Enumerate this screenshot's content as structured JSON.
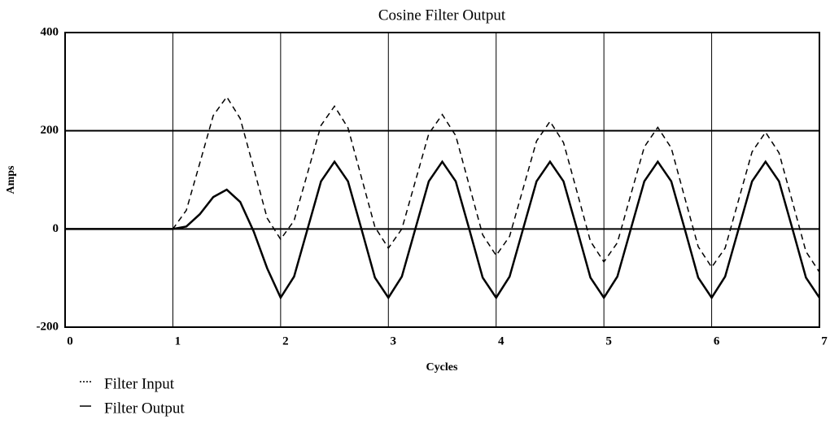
{
  "chart_data": {
    "type": "line",
    "title": "Cosine Filter Output",
    "xlabel": "Cycles",
    "ylabel": "Amps",
    "x": [
      0,
      0.125,
      0.25,
      0.375,
      0.5,
      0.625,
      0.75,
      0.875,
      1,
      1.125,
      1.25,
      1.375,
      1.5,
      1.625,
      1.75,
      1.875,
      2,
      2.125,
      2.25,
      2.375,
      2.5,
      2.625,
      2.75,
      2.875,
      3,
      3.125,
      3.25,
      3.375,
      3.5,
      3.625,
      3.75,
      3.875,
      4,
      4.125,
      4.25,
      4.375,
      4.5,
      4.625,
      4.75,
      4.875,
      5,
      5.125,
      5.25,
      5.375,
      5.5,
      5.625,
      5.75,
      5.875,
      6,
      6.125,
      6.25,
      6.375,
      6.5,
      6.625,
      6.75,
      6.875,
      7
    ],
    "series": [
      {
        "name": "Filter Input",
        "color": "#000000",
        "dash": true,
        "values": [
          0,
          0,
          0,
          0,
          0,
          0,
          0,
          0,
          0,
          38,
          134,
          231,
          269,
          225,
          124,
          22,
          -21,
          17,
          114,
          211,
          250,
          206,
          105,
          4,
          -39,
          0,
          97,
          194,
          233,
          190,
          89,
          -12,
          -54,
          -15,
          82,
          179,
          219,
          176,
          76,
          -25,
          -67,
          -28,
          70,
          167,
          207,
          165,
          64,
          -36,
          -78,
          -39,
          59,
          157,
          197,
          155,
          55,
          -46,
          -88
        ]
      },
      {
        "name": "Filter Output",
        "color": "#000000",
        "dash": false,
        "values": [
          0,
          0,
          0,
          0,
          0,
          0,
          0,
          0,
          0,
          5,
          30,
          65,
          80,
          55,
          -5,
          -80,
          -140,
          -97,
          0,
          97,
          137,
          97,
          0,
          -99,
          -140,
          -97,
          0,
          97,
          137,
          97,
          0,
          -99,
          -140,
          -97,
          0,
          97,
          137,
          97,
          0,
          -99,
          -140,
          -97,
          0,
          97,
          137,
          97,
          0,
          -99,
          -140,
          -97,
          0,
          97,
          137,
          97,
          0,
          -99,
          -140
        ]
      }
    ],
    "xlim": [
      0,
      7
    ],
    "xticks": [
      0,
      1,
      2,
      3,
      4,
      5,
      6,
      7
    ],
    "ylim": [
      -200,
      400
    ],
    "yticks": [
      -200,
      0,
      200,
      400
    ],
    "grid": true
  }
}
